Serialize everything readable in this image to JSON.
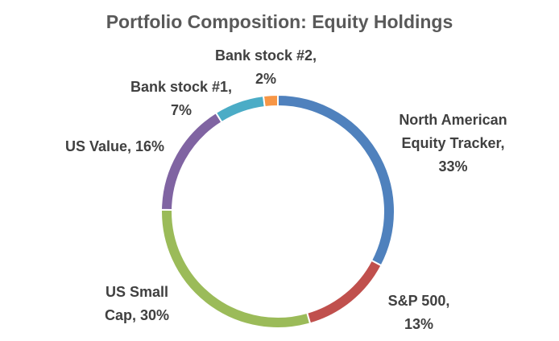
{
  "chart_data": {
    "type": "donut",
    "title": "Portfolio Composition: Equity Holdings",
    "values": [
      33,
      13,
      30,
      16,
      7,
      2
    ],
    "value_labels": [
      "North American Equity Tracker, 33%",
      "S&P 500, 13%",
      "US Small Cap, 30%",
      "US Value, 16%",
      "Bank stock #1, 7%",
      "Bank stock #2, 2%"
    ],
    "colors": [
      "#4f81bd",
      "#c0504d",
      "#9bbb59",
      "#8064a2",
      "#4bacc6",
      "#f79646"
    ]
  }
}
